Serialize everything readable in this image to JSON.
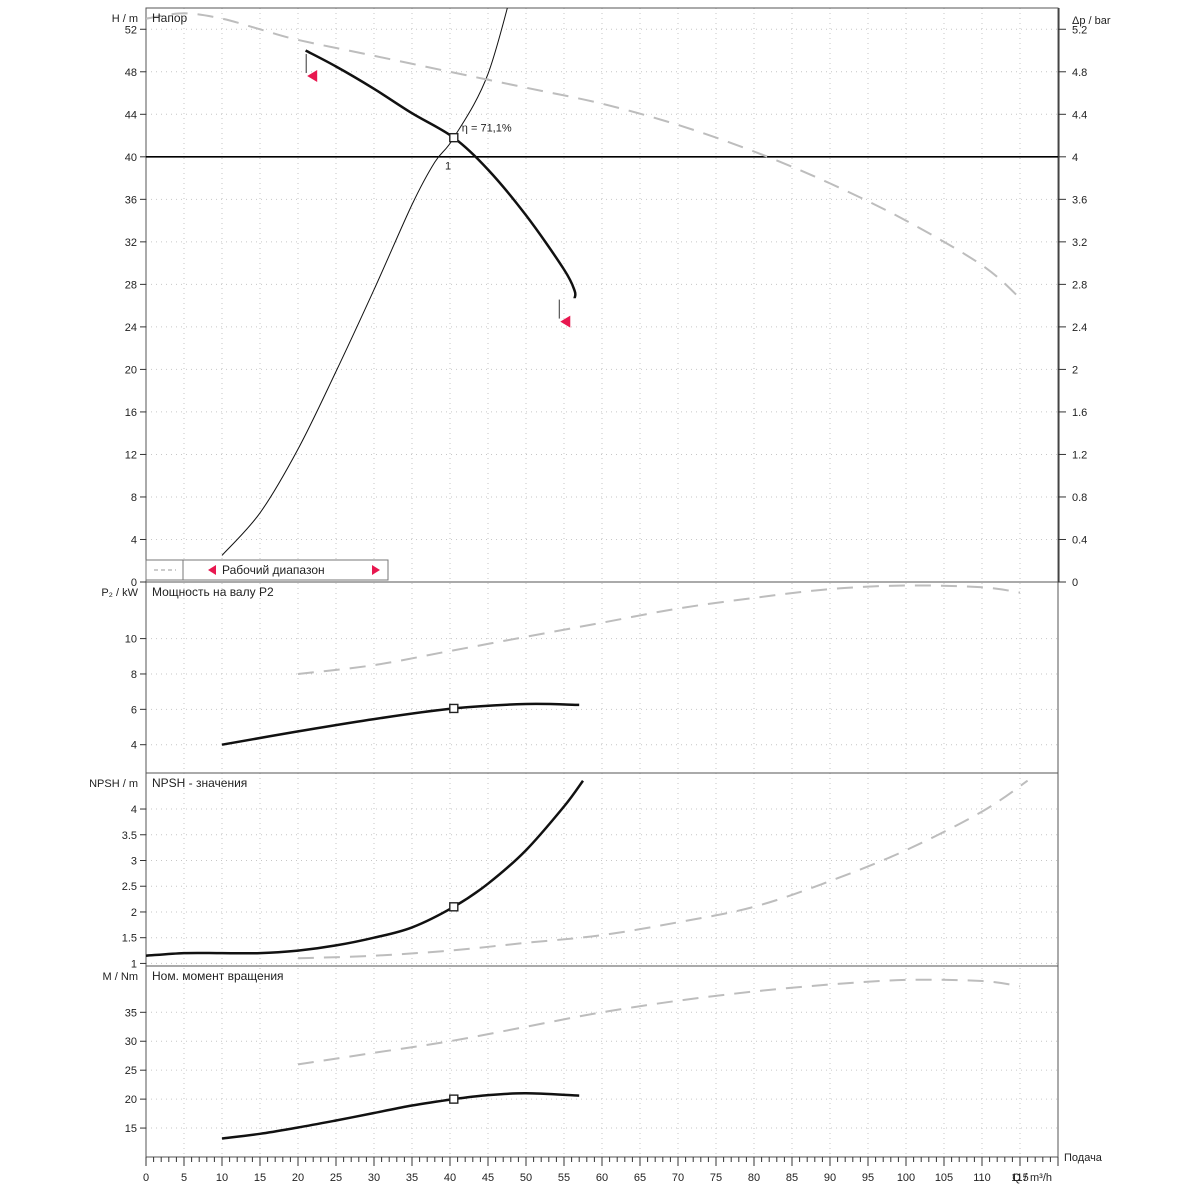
{
  "chart_data": {
    "type": "line",
    "x_axis": {
      "label": "Q / m³/h",
      "side_label": "Подача",
      "min": 0,
      "max": 120,
      "ticks": [
        0,
        5,
        10,
        15,
        20,
        25,
        30,
        35,
        40,
        45,
        50,
        55,
        60,
        65,
        70,
        75,
        80,
        85,
        90,
        95,
        100,
        105,
        110,
        115
      ]
    },
    "colors": {
      "marker": "#e8174f",
      "curve": "#111111",
      "ghost": "#bdbdbd"
    },
    "panels": [
      {
        "id": "head",
        "title": "Напор",
        "ylabel": "H / m",
        "ylim": [
          0,
          54
        ],
        "yticks": [
          0,
          4,
          8,
          12,
          16,
          20,
          24,
          28,
          32,
          36,
          40,
          44,
          48,
          52
        ],
        "ytick_labels": [
          "0",
          "4",
          "8",
          "12",
          "16",
          "20",
          "24",
          "28",
          "32",
          "36",
          "40",
          "44",
          "48",
          "52"
        ],
        "right_axis": {
          "label": "Δp / bar",
          "ticks": [
            0,
            0.4,
            0.8,
            1.2,
            1.6,
            2,
            2.4,
            2.8,
            3.2,
            3.6,
            4,
            4.4,
            4.8,
            5.2
          ],
          "labels": [
            "0",
            "0.4",
            "0.8",
            "1.2",
            "1.6",
            "2",
            "2.4",
            "2.8",
            "3.2",
            "3.6",
            "4",
            "4.4",
            "4.8",
            "5.2"
          ]
        },
        "duty_level": 40,
        "annotation": "η = 71,1%",
        "duty_point": {
          "x": 40.5,
          "y": 41.8
        },
        "operating_point_label": {
          "x": 40,
          "y": 39.2,
          "text": "1"
        },
        "series": [
          {
            "kind": "main",
            "x": [
              21,
              25,
              30,
              35,
              40.5,
              45,
              50,
              55,
              56.4,
              56.4
            ],
            "y": [
              50,
              48.5,
              46.4,
              44.1,
              41.8,
              38.8,
              34.5,
              29.4,
              27.4,
              26.7
            ]
          },
          {
            "kind": "thin",
            "x": [
              10,
              15,
              20,
              25,
              30,
              35,
              38,
              40.5,
              45,
              49
            ],
            "y": [
              2.5,
              6.5,
              12.5,
              19.8,
              27.5,
              35.5,
              39.5,
              41.8,
              47.8,
              58
            ]
          },
          {
            "kind": "ghost",
            "x": [
              0,
              5,
              10,
              15,
              20,
              30,
              40,
              50,
              60,
              70,
              80,
              90,
              100,
              110,
              115
            ],
            "y": [
              53,
              53.5,
              53,
              52,
              51,
              49.5,
              48,
              46.5,
              45,
              43,
              40.5,
              37.5,
              34,
              29.8,
              26.7
            ]
          }
        ],
        "limit_markers": [
          {
            "x": 22,
            "y": 47.6
          },
          {
            "x": 55.3,
            "y": 24.5
          }
        ],
        "legend": {
          "text": "Рабочий диапазон"
        }
      },
      {
        "id": "power",
        "title": "Мощность на валу P2",
        "ylabel": "P₂ / kW",
        "ylim": [
          2.4,
          13.2
        ],
        "yticks": [
          4,
          6,
          8,
          10
        ],
        "ytick_labels": [
          "4",
          "6",
          "8",
          "10"
        ],
        "duty_point": {
          "x": 40.5,
          "y": 6.05
        },
        "series": [
          {
            "kind": "main",
            "x": [
              10,
              20,
              30,
              40.5,
              50,
              57
            ],
            "y": [
              4.0,
              4.75,
              5.45,
              6.05,
              6.3,
              6.25
            ]
          },
          {
            "kind": "ghost",
            "x": [
              20,
              30,
              40,
              50,
              60,
              70,
              80,
              90,
              100,
              110,
              115
            ],
            "y": [
              8.0,
              8.5,
              9.3,
              10.1,
              10.9,
              11.7,
              12.3,
              12.8,
              13.0,
              12.9,
              12.6
            ]
          }
        ]
      },
      {
        "id": "npsh",
        "title": "NPSH - значения",
        "ylabel": "NPSH / m",
        "ylim": [
          0.95,
          4.7
        ],
        "yticks": [
          1,
          1.5,
          2,
          2.5,
          3,
          3.5,
          4
        ],
        "ytick_labels": [
          "1",
          "1.5",
          "2",
          "2.5",
          "3",
          "3.5",
          "4"
        ],
        "duty_point": {
          "x": 40.5,
          "y": 2.1
        },
        "series": [
          {
            "kind": "main",
            "x": [
              0,
              5,
              10,
              15,
              20,
              25,
              30,
              35,
              40.5,
              45,
              50,
              55,
              57.5
            ],
            "y": [
              1.15,
              1.2,
              1.2,
              1.2,
              1.25,
              1.35,
              1.5,
              1.7,
              2.1,
              2.55,
              3.2,
              4.05,
              4.55
            ]
          },
          {
            "kind": "ghost",
            "x": [
              20,
              30,
              40,
              50,
              60,
              70,
              80,
              90,
              100,
              110,
              116
            ],
            "y": [
              1.1,
              1.15,
              1.25,
              1.4,
              1.55,
              1.8,
              2.1,
              2.6,
              3.2,
              3.95,
              4.55
            ]
          }
        ]
      },
      {
        "id": "torque",
        "title": "Ном. момент вращения",
        "ylabel": "M / Nm",
        "ylim": [
          10,
          43
        ],
        "yticks": [
          15,
          20,
          25,
          30,
          35
        ],
        "ytick_labels": [
          "15",
          "20",
          "25",
          "30",
          "35"
        ],
        "duty_point": {
          "x": 40.5,
          "y": 20
        },
        "series": [
          {
            "kind": "main",
            "x": [
              10,
              15,
              20,
              25,
              30,
              35,
              40.5,
              45,
              50,
              57
            ],
            "y": [
              13.2,
              14.0,
              15.1,
              16.3,
              17.6,
              18.9,
              20.0,
              20.7,
              21.0,
              20.6
            ]
          },
          {
            "kind": "ghost",
            "x": [
              20,
              30,
              40,
              50,
              60,
              70,
              80,
              90,
              100,
              110,
              115
            ],
            "y": [
              26,
              28,
              30,
              32.5,
              35,
              37,
              38.6,
              39.8,
              40.6,
              40.4,
              39.5
            ]
          }
        ]
      }
    ]
  }
}
